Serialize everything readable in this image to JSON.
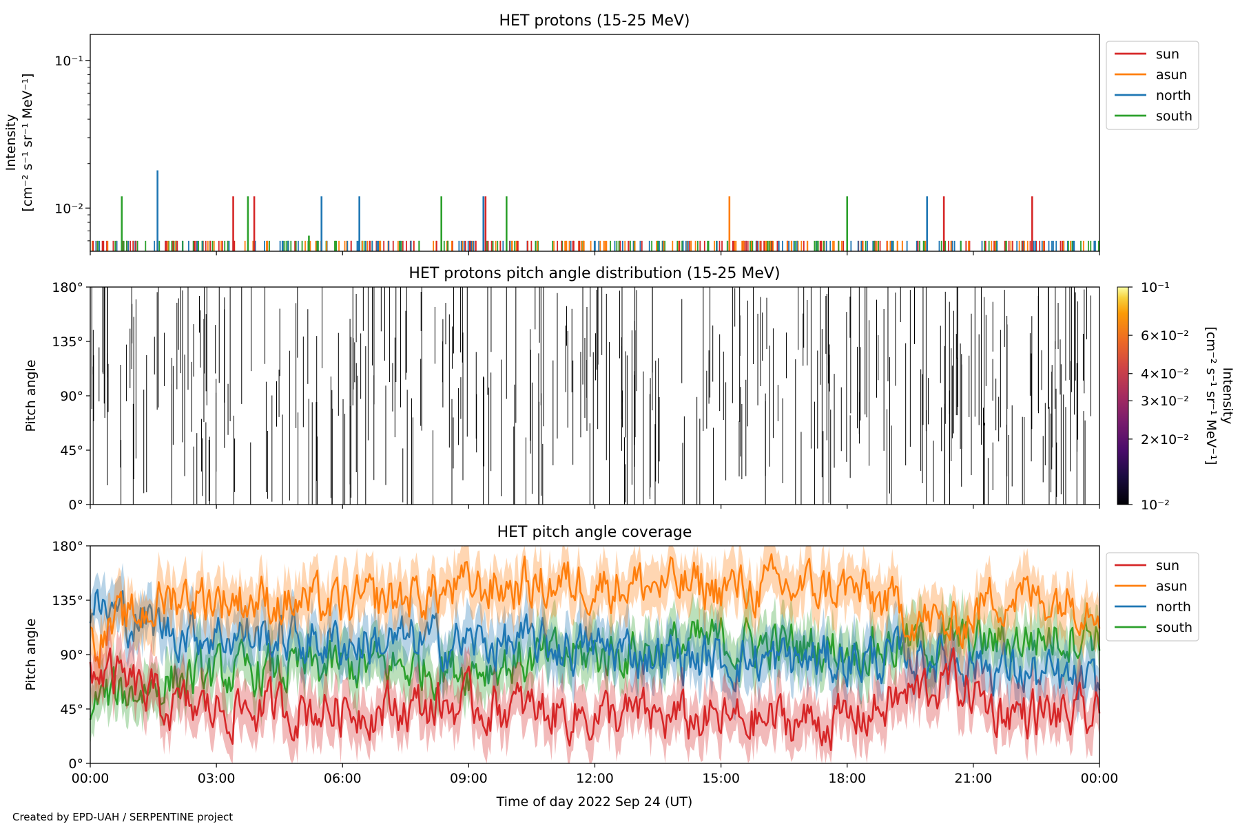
{
  "colors": {
    "sun": "#d62728",
    "asun": "#ff7f0e",
    "north": "#1f77b4",
    "south": "#2ca02c",
    "ink": "#000000",
    "legend_border": "#cccccc"
  },
  "credit": "Created by EPD-UAH / SERPENTINE project",
  "chart_data": [
    {
      "type": "line",
      "title": "HET protons (15-25 MeV)",
      "xlabel": "",
      "ylabel_line1": "Intensity",
      "ylabel_line2": "[cm⁻² s⁻¹ sr⁻¹ MeV⁻¹]",
      "yscale": "log",
      "ylim": [
        0.0051,
        0.15
      ],
      "xlim_hours": [
        0,
        24
      ],
      "yticks": [
        {
          "value": 0.01,
          "label": "10⁻²"
        },
        {
          "value": 0.1,
          "label": "10⁻¹"
        }
      ],
      "legend": [
        "sun",
        "asun",
        "north",
        "south"
      ],
      "legend_loc": "outside upper right",
      "baseline_value": 0.006,
      "series": [
        {
          "name": "sun",
          "color_key": "sun",
          "spikes": [
            [
              3.4,
              0.012
            ],
            [
              3.9,
              0.012
            ],
            [
              9.4,
              0.012
            ],
            [
              20.3,
              0.012
            ],
            [
              22.4,
              0.012
            ]
          ]
        },
        {
          "name": "asun",
          "color_key": "asun",
          "spikes": [
            [
              15.2,
              0.012
            ]
          ]
        },
        {
          "name": "north",
          "color_key": "north",
          "spikes": [
            [
              1.6,
              0.018
            ],
            [
              5.5,
              0.012
            ],
            [
              6.4,
              0.012
            ],
            [
              9.35,
              0.012
            ],
            [
              19.9,
              0.012
            ]
          ]
        },
        {
          "name": "south",
          "color_key": "south",
          "spikes": [
            [
              0.75,
              0.012
            ],
            [
              3.75,
              0.012
            ],
            [
              5.2,
              0.0065
            ],
            [
              8.35,
              0.012
            ],
            [
              9.9,
              0.012
            ],
            [
              18.0,
              0.012
            ]
          ]
        }
      ]
    },
    {
      "type": "heatmap",
      "title": "HET protons pitch angle distribution (15-25 MeV)",
      "xlabel": "",
      "ylabel": "Pitch angle",
      "ylim": [
        0,
        180
      ],
      "xlim_hours": [
        0,
        24
      ],
      "yticks": [
        "0°",
        "45°",
        "90°",
        "135°",
        "180°"
      ],
      "colorbar": {
        "label_line1": "Intensity",
        "label_line2": "[cm⁻² s⁻¹ sr⁻¹ MeV⁻¹]",
        "scale": "log",
        "range": [
          0.01,
          0.1
        ],
        "colormap": "inferno",
        "ticks": [
          {
            "value": 0.1,
            "label": "10⁻¹"
          },
          {
            "value": 0.06,
            "label": "6×10⁻²"
          },
          {
            "value": 0.04,
            "label": "4×10⁻²"
          },
          {
            "value": 0.03,
            "label": "3×10⁻²"
          },
          {
            "value": 0.02,
            "label": "2×10⁻²"
          },
          {
            "value": 0.01,
            "label": "10⁻²"
          }
        ]
      },
      "segment_count_estimate": 380
    },
    {
      "type": "line",
      "title": "HET pitch angle coverage",
      "xlabel": "Time of day 2022 Sep 24 (UT)",
      "ylabel": "Pitch angle",
      "ylim": [
        0,
        180
      ],
      "xlim_hours": [
        0,
        24
      ],
      "xticks": [
        "00:00",
        "03:00",
        "06:00",
        "09:00",
        "12:00",
        "15:00",
        "18:00",
        "21:00",
        "00:00"
      ],
      "yticks": [
        "0°",
        "45°",
        "90°",
        "135°",
        "180°"
      ],
      "legend": [
        "sun",
        "asun",
        "north",
        "south"
      ],
      "legend_loc": "outside upper right",
      "series": [
        {
          "name": "sun",
          "color_key": "sun",
          "approx_mean_deg": [
            [
              0,
              80
            ],
            [
              2,
              45
            ],
            [
              6,
              45
            ],
            [
              9,
              48
            ],
            [
              12,
              40
            ],
            [
              15,
              35
            ],
            [
              18,
              35
            ],
            [
              20.5,
              70
            ],
            [
              21.5,
              45
            ],
            [
              24,
              35
            ]
          ],
          "band_halfwidth_deg": 20
        },
        {
          "name": "asun",
          "color_key": "asun",
          "approx_mean_deg": [
            [
              0,
              100
            ],
            [
              2,
              140
            ],
            [
              6,
              130
            ],
            [
              9,
              145
            ],
            [
              12,
              150
            ],
            [
              15,
              145
            ],
            [
              18,
              145
            ],
            [
              20.5,
              110
            ],
            [
              21.5,
              140
            ],
            [
              24,
              135
            ]
          ],
          "band_halfwidth_deg": 20
        },
        {
          "name": "north",
          "color_key": "north",
          "approx_mean_deg": [
            [
              0,
              130
            ],
            [
              2,
              110
            ],
            [
              6,
              100
            ],
            [
              9,
              100
            ],
            [
              12,
              95
            ],
            [
              15,
              85
            ],
            [
              18,
              85
            ],
            [
              20.5,
              90
            ],
            [
              21.5,
              80
            ],
            [
              24,
              60
            ]
          ],
          "band_halfwidth_deg": 20
        },
        {
          "name": "south",
          "color_key": "south",
          "approx_mean_deg": [
            [
              0,
              50
            ],
            [
              2,
              70
            ],
            [
              6,
              80
            ],
            [
              9,
              80
            ],
            [
              12,
              90
            ],
            [
              15,
              100
            ],
            [
              18,
              95
            ],
            [
              20.5,
              100
            ],
            [
              21.5,
              100
            ],
            [
              24,
              110
            ]
          ],
          "band_halfwidth_deg": 20
        }
      ]
    }
  ]
}
